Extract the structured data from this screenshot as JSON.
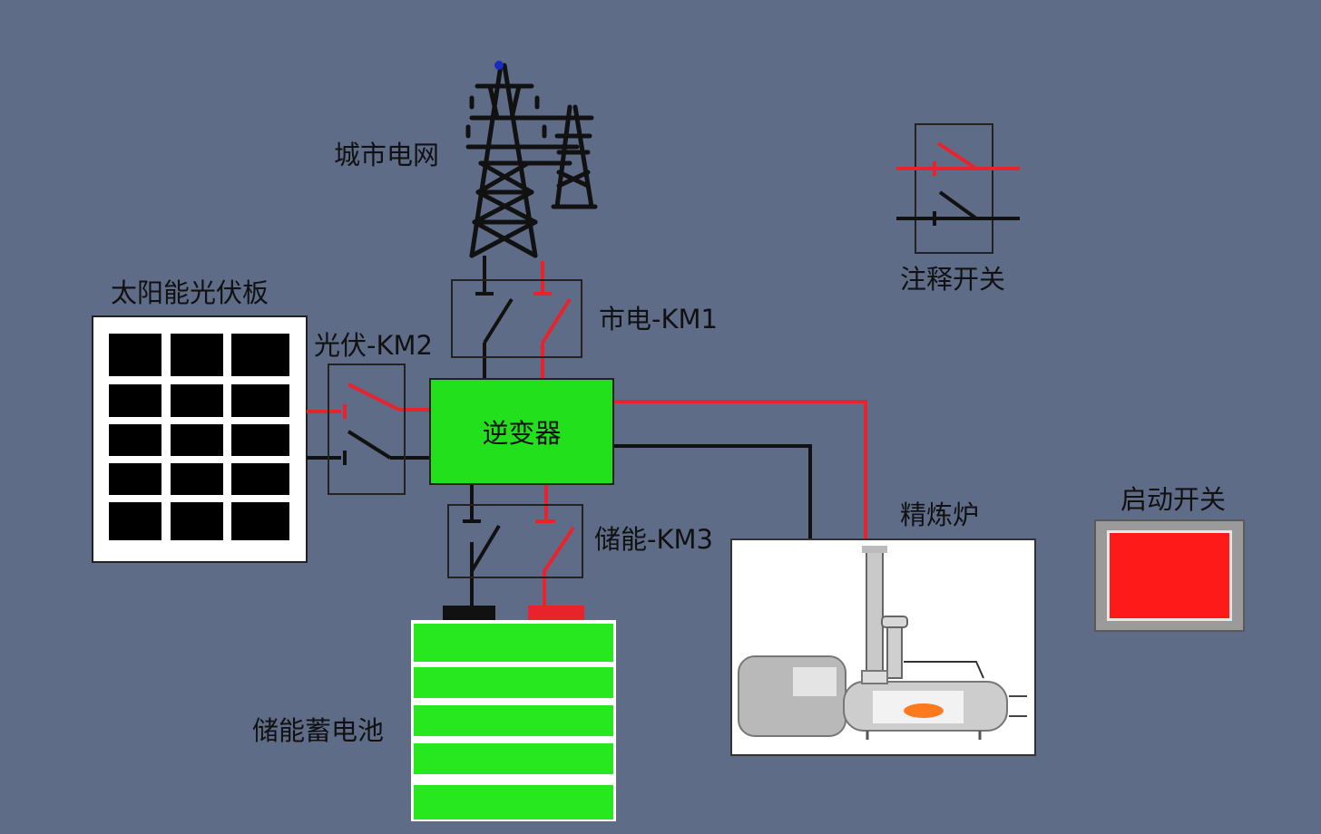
{
  "labels": {
    "grid": "城市电网",
    "solar_panel": "太阳能光伏板",
    "pv_switch": "光伏-KM2",
    "mains_switch": "市电-KM1",
    "storage_switch": "储能-KM3",
    "battery": "储能蓄电池",
    "inverter": "逆变器",
    "furnace": "精炼炉",
    "legend_switch": "注释开关",
    "start_switch": "启动开关"
  },
  "colors": {
    "background": "#5e6c87",
    "live_wire": "#e8232b",
    "neutral_wire": "#111111",
    "inverter": "#22e01c",
    "battery_cell": "#27e81e",
    "start_button": "#ff1a1a",
    "flame": "#ff7a1c"
  },
  "icons": {
    "grid": "transmission-tower-icon",
    "solar_panel": "solar-panel-icon",
    "battery": "battery-stack-icon",
    "furnace": "refining-furnace-icon"
  }
}
